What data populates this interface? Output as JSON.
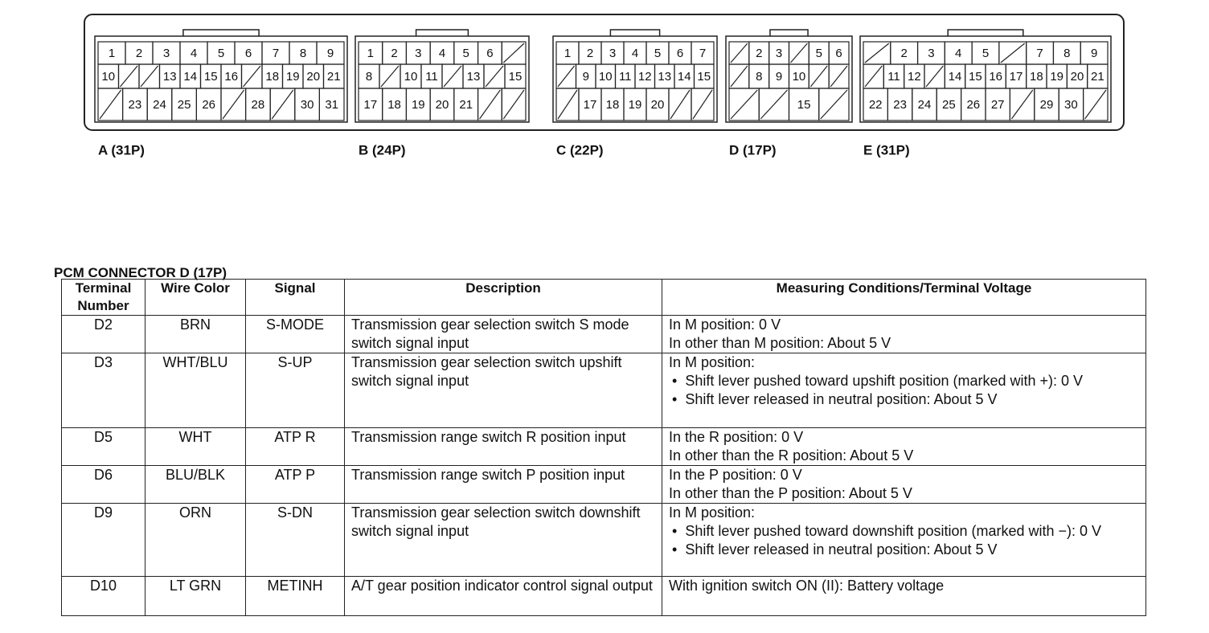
{
  "connectors": [
    {
      "label": "A (31P)",
      "rows": [
        [
          "1",
          "2",
          "3",
          "4",
          "5",
          "6",
          "7",
          "8",
          "9"
        ],
        [
          "10",
          null,
          null,
          "13",
          "14",
          "15",
          "16",
          null,
          "18",
          "19",
          "20",
          "21"
        ],
        [
          null,
          "23",
          "24",
          "25",
          "26",
          null,
          "28",
          null,
          "30",
          "31"
        ]
      ]
    },
    {
      "label": "B (24P)",
      "rows": [
        [
          "1",
          "2",
          "3",
          "4",
          "5",
          "6",
          null
        ],
        [
          "8",
          null,
          "10",
          "11",
          null,
          "13",
          null,
          "15"
        ],
        [
          "17",
          "18",
          "19",
          "20",
          "21",
          null,
          null
        ]
      ]
    },
    {
      "label": "C (22P)",
      "rows": [
        [
          "1",
          "2",
          "3",
          "4",
          "5",
          "6",
          "7"
        ],
        [
          null,
          "9",
          "10",
          "11",
          "12",
          "13",
          "14",
          "15"
        ],
        [
          null,
          "17",
          "18",
          "19",
          "20",
          null,
          null
        ]
      ]
    },
    {
      "label": "D (17P)",
      "rows": [
        [
          null,
          "2",
          "3",
          null,
          "5",
          "6"
        ],
        [
          null,
          "8",
          "9",
          "10",
          null,
          null
        ],
        [
          null,
          null,
          "15",
          null
        ]
      ]
    },
    {
      "label": "E (31P)",
      "rows": [
        [
          null,
          "2",
          "3",
          "4",
          "5",
          null,
          "7",
          "8",
          "9"
        ],
        [
          null,
          "11",
          "12",
          null,
          "14",
          "15",
          "16",
          "17",
          "18",
          "19",
          "20",
          "21"
        ],
        [
          "22",
          "23",
          "24",
          "25",
          "26",
          "27",
          null,
          "29",
          "30",
          null
        ]
      ]
    }
  ],
  "table": {
    "title": "PCM CONNECTOR D (17P)",
    "header": [
      "Terminal Number",
      "Wire Color",
      "Signal",
      "Description",
      "Measuring Conditions/Terminal Voltage"
    ],
    "rows": [
      {
        "terminal": "D2",
        "wire": "BRN",
        "signal": "S-MODE",
        "description": "Transmission gear selection switch S mode switch signal input",
        "measuring": {
          "lines": [
            "In M position: 0 V",
            "In other than M position: About 5 V"
          ]
        }
      },
      {
        "terminal": "D3",
        "wire": "WHT/BLU",
        "signal": "S-UP",
        "description": "Transmission gear selection switch upshift switch signal input",
        "measuring": {
          "lines": [
            "In M position:"
          ],
          "bullets": [
            "Shift lever pushed toward upshift position (marked with +): 0 V",
            "Shift lever released in neutral position: About 5 V"
          ]
        }
      },
      {
        "terminal": "D5",
        "wire": "WHT",
        "signal": "ATP R",
        "description": "Transmission range switch R position input",
        "measuring": {
          "lines": [
            "In the R position: 0 V",
            "In other than the R position: About 5 V"
          ]
        }
      },
      {
        "terminal": "D6",
        "wire": "BLU/BLK",
        "signal": "ATP P",
        "description": "Transmission range switch P position input",
        "measuring": {
          "lines": [
            "In the P position: 0 V",
            "In other than the P position: About 5 V"
          ]
        }
      },
      {
        "terminal": "D9",
        "wire": "ORN",
        "signal": "S-DN",
        "description": "Transmission gear selection switch downshift switch signal input",
        "measuring": {
          "lines": [
            "In M position:"
          ],
          "bullets": [
            "Shift lever pushed toward downshift position (marked with −): 0 V",
            "Shift lever released in neutral position: About 5 V"
          ]
        }
      },
      {
        "terminal": "D10",
        "wire": "LT GRN",
        "signal": "METINH",
        "description": "A/T gear position indicator control signal output",
        "measuring": {
          "lines": [
            "With ignition switch ON (II): Battery voltage"
          ]
        }
      }
    ]
  }
}
